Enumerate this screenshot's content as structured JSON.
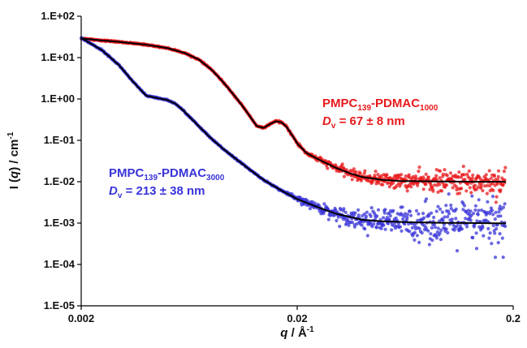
{
  "chart_data": {
    "type": "scatter",
    "x_scale": "log",
    "y_scale": "log",
    "xlim": [
      0.002,
      0.2
    ],
    "ylim": [
      1e-05,
      100
    ],
    "x_ticks": [
      "0.002",
      "0.02",
      "0.2"
    ],
    "y_ticks": [
      "1.E-05",
      "1.E-04",
      "1.E-03",
      "1.E-02",
      "1.E-01",
      "1.E+00",
      "1.E+01",
      "1.E+02"
    ],
    "xlabel": {
      "italic": "q",
      "main": " / Å",
      "sup": "-1"
    },
    "ylabel": {
      "pre": "I (",
      "italic": "q",
      "post": ") / cm",
      "sup": "-1"
    },
    "grid": false,
    "series": [
      {
        "name": "PMPC139-PDMAC1000",
        "color": "#e8191c",
        "fit_color": "#000000",
        "points": [
          [
            0.002,
            29
          ],
          [
            0.0025,
            26
          ],
          [
            0.003,
            24
          ],
          [
            0.0035,
            22
          ],
          [
            0.004,
            20.5
          ],
          [
            0.005,
            17
          ],
          [
            0.006,
            13
          ],
          [
            0.007,
            9
          ],
          [
            0.008,
            5.2
          ],
          [
            0.009,
            2.7
          ],
          [
            0.01,
            1.4
          ],
          [
            0.011,
            0.75
          ],
          [
            0.012,
            0.4
          ],
          [
            0.013,
            0.22
          ],
          [
            0.014,
            0.2
          ],
          [
            0.015,
            0.25
          ],
          [
            0.016,
            0.29
          ],
          [
            0.017,
            0.27
          ],
          [
            0.018,
            0.2
          ],
          [
            0.019,
            0.13
          ],
          [
            0.02,
            0.085
          ],
          [
            0.022,
            0.05
          ],
          [
            0.025,
            0.035
          ],
          [
            0.03,
            0.022
          ],
          [
            0.035,
            0.016
          ],
          [
            0.04,
            0.013
          ],
          [
            0.05,
            0.011
          ],
          [
            0.06,
            0.0104
          ],
          [
            0.08,
            0.0102
          ],
          [
            0.1,
            0.0101
          ],
          [
            0.13,
            0.01
          ],
          [
            0.16,
            0.01
          ],
          [
            0.185,
            0.01
          ]
        ],
        "scatter_spread_decades": 0.35
      },
      {
        "name": "PMPC139-PDMAC3000",
        "color": "#3a34d8",
        "fit_color": "#000000",
        "points": [
          [
            0.002,
            30
          ],
          [
            0.0025,
            15
          ],
          [
            0.003,
            6.5
          ],
          [
            0.0035,
            2.5
          ],
          [
            0.004,
            1.2
          ],
          [
            0.0045,
            1.05
          ],
          [
            0.005,
            0.95
          ],
          [
            0.0055,
            0.75
          ],
          [
            0.006,
            0.5
          ],
          [
            0.007,
            0.22
          ],
          [
            0.008,
            0.11
          ],
          [
            0.009,
            0.065
          ],
          [
            0.01,
            0.042
          ],
          [
            0.012,
            0.02
          ],
          [
            0.014,
            0.011
          ],
          [
            0.017,
            0.006
          ],
          [
            0.02,
            0.0038
          ],
          [
            0.025,
            0.0024
          ],
          [
            0.03,
            0.0017
          ],
          [
            0.04,
            0.0012
          ],
          [
            0.05,
            0.0011
          ],
          [
            0.07,
            0.00104
          ],
          [
            0.1,
            0.00101
          ],
          [
            0.14,
            0.001
          ],
          [
            0.185,
            0.00098
          ]
        ],
        "scatter_spread_decades": 0.7
      }
    ],
    "annotations": [
      {
        "color": "#e8191c",
        "line1": {
          "a": "PMPC",
          "a_sub": "139",
          "b": "-PDMAC",
          "b_sub": "1000"
        },
        "line2": {
          "italic": "D",
          "sub": "v",
          "rest": " = 67 ± 8 nm"
        }
      },
      {
        "color": "#3a34d8",
        "line1": {
          "a": "PMPC",
          "a_sub": "139",
          "b": "-PDMAC",
          "b_sub": "3000"
        },
        "line2": {
          "italic": "D",
          "sub": "v",
          "rest": " = 213 ± 38 nm"
        }
      }
    ]
  }
}
